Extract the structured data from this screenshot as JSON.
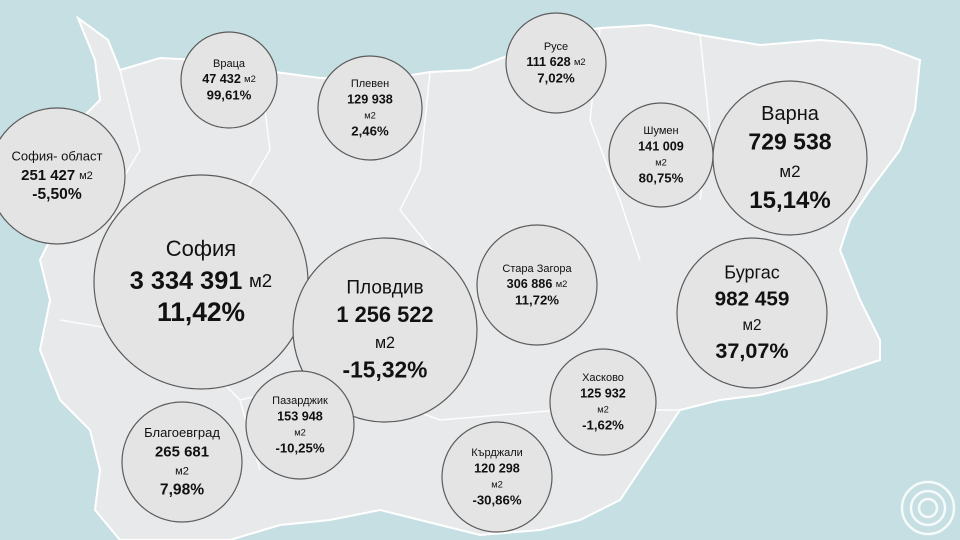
{
  "regions": [
    {
      "name": "Враца",
      "area": "47 432",
      "unit": "м2",
      "change": "99,61%"
    },
    {
      "name": "Плевен",
      "area": "129 938",
      "unit": "м2",
      "change": "2,46%"
    },
    {
      "name": "Русе",
      "area": "111 628",
      "unit": "м2",
      "change": "7,02%"
    },
    {
      "name": "Шумен",
      "area": "141 009",
      "unit": "м2",
      "change": "80,75%"
    },
    {
      "name": "Варна",
      "area": "729 538",
      "unit": "м2",
      "change": "15,14%"
    },
    {
      "name": "София- област",
      "area": "251 427",
      "unit": "м2",
      "change": "-5,50%"
    },
    {
      "name": "София",
      "area": "3 334 391",
      "unit": "м2",
      "change": "11,42%"
    },
    {
      "name": "Пловдив",
      "area": "1 256 522",
      "unit": "м2",
      "change": "-15,32%"
    },
    {
      "name": "Стара Загора",
      "area": "306 886",
      "unit": "м2",
      "change": "11,72%"
    },
    {
      "name": "Бургас",
      "area": "982 459",
      "unit": "м2",
      "change": "37,07%"
    },
    {
      "name": "Хасково",
      "area": "125 932",
      "unit": "м2",
      "change": "-1,62%"
    },
    {
      "name": "Пазарджик",
      "area": "153 948",
      "unit": "м2",
      "change": "-10,25%"
    },
    {
      "name": "Кърджали",
      "area": "120 298",
      "unit": "м2",
      "change": "-30,86%"
    },
    {
      "name": "Благоевград",
      "area": "265 681",
      "unit": "м2",
      "change": "7,98%"
    }
  ]
}
